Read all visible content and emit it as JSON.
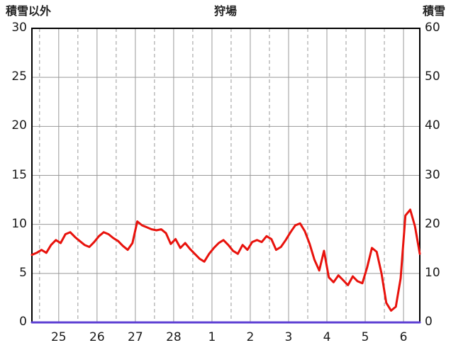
{
  "header": {
    "left_axis_title": "積雪以外",
    "station_name": "狩場",
    "right_axis_title": "積雪"
  },
  "chart_data": {
    "type": "line",
    "title": "狩場",
    "x_unit": "day",
    "x_domain": [
      0,
      10.125
    ],
    "day_labels": [
      "25",
      "26",
      "27",
      "28",
      "1",
      "2",
      "3",
      "4",
      "5",
      "6"
    ],
    "day_line_positions": [
      0.7,
      1.7,
      2.7,
      3.7,
      4.7,
      5.7,
      6.7,
      7.7,
      8.7,
      9.7
    ],
    "noon_line_positions": [
      0.2,
      1.2,
      2.2,
      3.2,
      4.2,
      5.2,
      6.2,
      7.2,
      8.2,
      9.2
    ],
    "left_axis": {
      "title": "積雪以外",
      "min": 0,
      "max": 30,
      "ticks": [
        0,
        5,
        10,
        15,
        20,
        25,
        30
      ]
    },
    "right_axis": {
      "title": "積雪",
      "min": 0,
      "max": 60,
      "ticks": [
        0,
        10,
        20,
        30,
        40,
        50,
        60
      ]
    },
    "grid": {
      "color": "#999999",
      "border_color": "#000000",
      "background": "#ffffff"
    },
    "series": [
      {
        "key": "non-snow",
        "name": "積雪以外",
        "axis": "left",
        "color": "#e8120c",
        "x_start": 0,
        "x_step": 0.125,
        "y": [
          6.9,
          7.1,
          7.4,
          7.1,
          7.9,
          8.4,
          8.1,
          9.0,
          9.2,
          8.7,
          8.3,
          7.9,
          7.7,
          8.2,
          8.8,
          9.2,
          9.0,
          8.6,
          8.3,
          7.8,
          7.4,
          8.1,
          10.3,
          9.9,
          9.7,
          9.5,
          9.4,
          9.5,
          9.1,
          8.0,
          8.5,
          7.6,
          8.1,
          7.5,
          7.0,
          6.5,
          6.2,
          7.0,
          7.6,
          8.1,
          8.4,
          7.9,
          7.3,
          7.0,
          7.9,
          7.4,
          8.2,
          8.4,
          8.2,
          8.8,
          8.5,
          7.4,
          7.7,
          8.4,
          9.2,
          9.9,
          10.1,
          9.3,
          8.0,
          6.4,
          5.3,
          7.3,
          4.6,
          4.1,
          4.8,
          4.3,
          3.8,
          4.7,
          4.2,
          4.0,
          5.6,
          7.6,
          7.2,
          5.0,
          2.0,
          1.2,
          1.6,
          4.5,
          10.9,
          11.5,
          9.8,
          7.0
        ]
      },
      {
        "key": "snow-depth",
        "name": "積雪",
        "axis": "right",
        "color": "#5D3FD3",
        "x_start": 0,
        "x_step": 10.125,
        "y": [
          0,
          0
        ]
      }
    ]
  }
}
